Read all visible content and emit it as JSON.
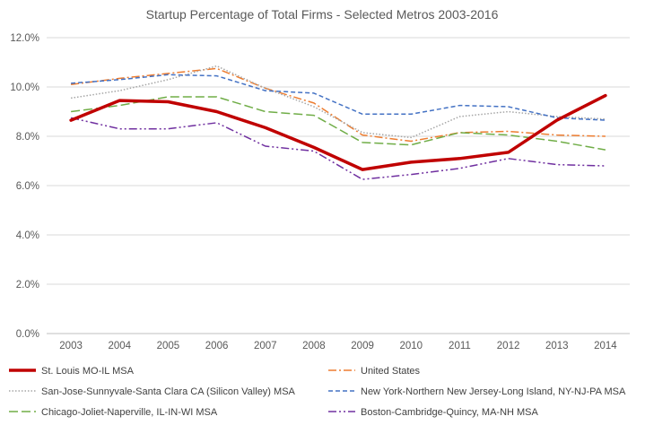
{
  "chart_data": {
    "type": "line",
    "title": "Startup Percentage of Total Firms - Selected Metros 2003-2016",
    "xlabel": "",
    "ylabel": "",
    "x": [
      "2003",
      "2004",
      "2005",
      "2006",
      "2007",
      "2008",
      "2009",
      "2010",
      "2011",
      "2012",
      "2013",
      "2014"
    ],
    "ylim": [
      0,
      12
    ],
    "yticks": [
      0,
      2,
      4,
      6,
      8,
      10,
      12
    ],
    "ytick_labels": [
      "0.0%",
      "2.0%",
      "4.0%",
      "6.0%",
      "8.0%",
      "10.0%",
      "12.0%"
    ],
    "grid": true,
    "legend_position": "bottom",
    "series": [
      {
        "name": "St. Louis MO-IL MSA",
        "color": "#c00000",
        "dash": "solid",
        "width": 3.5,
        "values": [
          8.65,
          9.45,
          9.4,
          9.0,
          8.35,
          7.55,
          6.65,
          6.95,
          7.1,
          7.35,
          8.65,
          9.65
        ]
      },
      {
        "name": "United States",
        "color": "#ed7d31",
        "dash": "dashdot",
        "width": 1.5,
        "values": [
          10.1,
          10.35,
          10.55,
          10.75,
          9.95,
          9.35,
          8.05,
          7.8,
          8.15,
          8.2,
          8.05,
          8.0
        ]
      },
      {
        "name": "San-Jose-Sunnyvale-Santa Clara CA (Silicon Valley) MSA",
        "color": "#a6a6a6",
        "dash": "dotted",
        "width": 1.5,
        "values": [
          9.55,
          9.85,
          10.3,
          10.85,
          9.95,
          9.2,
          8.15,
          7.95,
          8.8,
          9.0,
          8.8,
          8.7
        ]
      },
      {
        "name": "New York-Northern New Jersey-Long Island, NY-NJ-PA MSA",
        "color": "#4472c4",
        "dash": "dashed",
        "width": 1.5,
        "values": [
          10.15,
          10.3,
          10.5,
          10.45,
          9.85,
          9.75,
          8.9,
          8.9,
          9.25,
          9.2,
          8.75,
          8.65
        ]
      },
      {
        "name": "Chicago-Joliet-Naperville, IL-IN-WI MSA",
        "color": "#70ad47",
        "dash": "longdash",
        "width": 1.5,
        "values": [
          9.0,
          9.25,
          9.6,
          9.6,
          9.0,
          8.85,
          7.75,
          7.65,
          8.15,
          8.05,
          7.8,
          7.45
        ]
      },
      {
        "name": "Boston-Cambridge-Quincy, MA-NH MSA",
        "color": "#7030a0",
        "dash": "dashdotdot",
        "width": 1.5,
        "values": [
          8.75,
          8.3,
          8.3,
          8.55,
          7.6,
          7.4,
          6.25,
          6.45,
          6.7,
          7.1,
          6.85,
          6.8
        ]
      }
    ]
  }
}
